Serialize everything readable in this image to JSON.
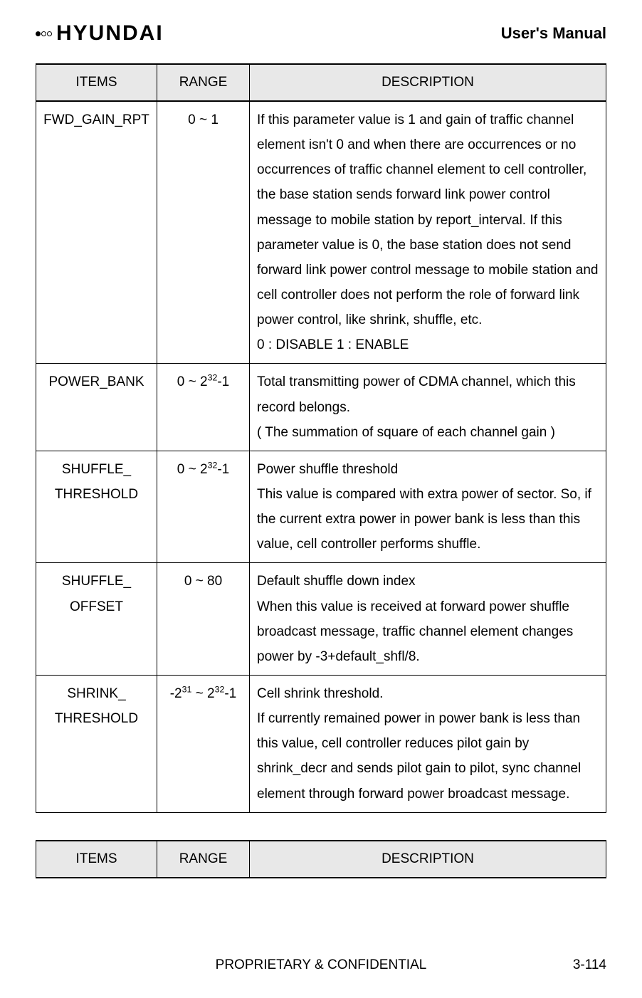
{
  "header": {
    "logo_text": "HYUNDAI",
    "manual_title": "User's Manual"
  },
  "table1": {
    "headers": {
      "items": "ITEMS",
      "range": "RANGE",
      "description": "DESCRIPTION"
    },
    "rows": [
      {
        "items": "FWD_GAIN_RPT",
        "range": "0 ~ 1",
        "description": "If this parameter value is 1 and gain of traffic channel element isn't 0 and when there are occurrences or no occurrences of traffic channel element to cell controller,  the base station sends forward link power control message to mobile station by report_interval. If this parameter value is 0, the base station does not send forward link power control message to mobile station and cell controller does not perform the role of forward link power control, like shrink, shuffle, etc.\n 0 : DISABLE     1 : ENABLE"
      },
      {
        "items": "POWER_BANK",
        "range_html": "0 ~ 2<sup>32</sup>-1",
        "description": "Total transmitting power of CDMA channel, which this record belongs.\n( The summation of square of each channel gain )"
      },
      {
        "items": "SHUFFLE_\nTHRESHOLD",
        "range_html": "0 ~ 2<sup>32</sup>-1",
        "description": "Power shuffle threshold\nThis value is compared with extra power of sector. So, if the current extra power in power bank is less than this value, cell controller performs shuffle."
      },
      {
        "items": "SHUFFLE_\nOFFSET",
        "range": "0 ~ 80",
        "description": "Default shuffle down index\nWhen this value is received at forward power shuffle broadcast message, traffic channel element changes power by -3+default_shfl/8."
      },
      {
        "items": "SHRINK_\nTHRESHOLD",
        "range_html": "-2<sup>31</sup> ~ 2<sup>32</sup>-1",
        "description": "Cell shrink threshold.\nIf currently remained power in power bank is less than this value, cell controller reduces pilot gain by shrink_decr and sends pilot gain to pilot, sync channel element  through forward power broadcast message."
      }
    ]
  },
  "table2": {
    "headers": {
      "items": "ITEMS",
      "range": "RANGE",
      "description": "DESCRIPTION"
    }
  },
  "footer": {
    "center": "PROPRIETARY & CONFIDENTIAL",
    "right": "3-114"
  }
}
